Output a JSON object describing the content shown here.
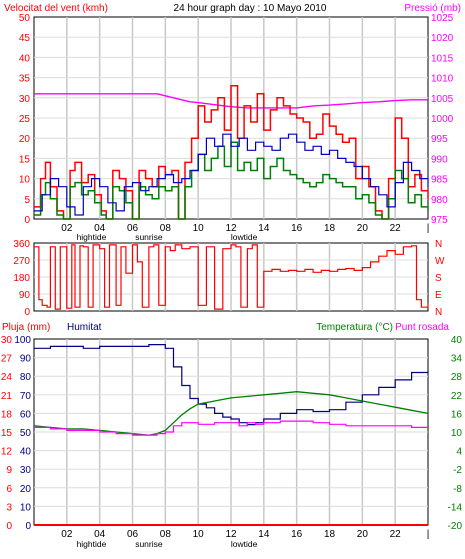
{
  "chart_data": [
    {
      "type": "line",
      "title": "24 hour graph day : 10 Mayo 2010",
      "left_axis_label": "Velocitat del vent (kmh)",
      "right_axis_label": "Pressió (mb)",
      "x_ticks": [
        "02",
        "04",
        "06",
        "08",
        "10",
        "12",
        "14",
        "16",
        "18",
        "20",
        "22",
        "|"
      ],
      "x_annotations": [
        {
          "text": "hightide",
          "x": 3.5
        },
        {
          "text": "sunrise",
          "x": 7.0
        },
        {
          "text": "lowtide",
          "x": 12.8
        }
      ],
      "left_ylim": [
        0,
        50
      ],
      "left_ticks": [
        0,
        5,
        10,
        15,
        20,
        25,
        30,
        35,
        40,
        45,
        50
      ],
      "right_ylim": [
        975,
        1025
      ],
      "right_ticks": [
        975,
        980,
        985,
        990,
        995,
        1000,
        1005,
        1010,
        1015,
        1020,
        1025
      ],
      "colors": {
        "gust": "#ff0000",
        "average": "#008000",
        "direction": "#0000c0",
        "pressure": "#ff00ff"
      },
      "series": [
        {
          "axis": "right",
          "key": "pressure",
          "x": [
            0,
            1,
            2,
            3,
            4,
            5,
            6,
            7,
            7.5,
            8,
            8.5,
            9,
            9.5,
            10,
            11,
            12,
            13,
            14,
            15,
            16,
            17,
            18,
            19,
            20,
            21,
            22,
            23,
            24
          ],
          "y": [
            1006,
            1006,
            1006,
            1006,
            1006,
            1006,
            1006,
            1006,
            1006,
            1005.5,
            1005,
            1004.5,
            1004,
            1003.8,
            1003.3,
            1002.8,
            1002.5,
            1002.5,
            1002.5,
            1002.5,
            1003,
            1003.2,
            1003.5,
            1003.8,
            1004,
            1004.3,
            1004.5,
            1004.5
          ]
        },
        {
          "axis": "left",
          "key": "gust",
          "x": [
            0,
            0.4,
            0.7,
            1.0,
            1.4,
            1.8,
            2.2,
            2.5,
            2.9,
            3.3,
            3.7,
            4.1,
            4.4,
            4.8,
            5.2,
            5.6,
            6.0,
            6.4,
            6.8,
            7.2,
            7.6,
            8.0,
            8.4,
            8.8,
            9.2,
            9.6,
            10.0,
            10.4,
            10.8,
            11.2,
            11.6,
            12.0,
            12.4,
            12.8,
            13.2,
            13.6,
            14.0,
            14.4,
            14.8,
            15.2,
            15.6,
            16.0,
            16.4,
            16.8,
            17.2,
            17.6,
            18.0,
            18.4,
            18.8,
            19.2,
            19.6,
            20.0,
            20.4,
            20.8,
            21.2,
            21.6,
            22.0,
            22.4,
            22.8,
            23.2,
            23.6,
            24.0
          ],
          "y": [
            3,
            10,
            14,
            8,
            2,
            0,
            12,
            14,
            9,
            11,
            6,
            2,
            0,
            12,
            10,
            7,
            0,
            12,
            10,
            8,
            13,
            11,
            12,
            0,
            14,
            20,
            28,
            24,
            27,
            30,
            22,
            33,
            20,
            28,
            24,
            31,
            22,
            27,
            30,
            28,
            26,
            25,
            24,
            20,
            21,
            26,
            23,
            21,
            19,
            20,
            10,
            13,
            8,
            2,
            0,
            10,
            25,
            20,
            8,
            11,
            7,
            5
          ]
        },
        {
          "axis": "left",
          "key": "average",
          "x": [
            0,
            0.4,
            0.7,
            1.0,
            1.4,
            1.8,
            2.2,
            2.5,
            2.9,
            3.3,
            3.7,
            4.1,
            4.4,
            4.8,
            5.2,
            5.6,
            6.0,
            6.4,
            6.8,
            7.2,
            7.6,
            8.0,
            8.4,
            8.8,
            9.2,
            9.6,
            10.0,
            10.4,
            10.8,
            11.2,
            11.6,
            12.0,
            12.4,
            12.8,
            13.2,
            13.6,
            14.0,
            14.4,
            14.8,
            15.2,
            15.6,
            16.0,
            16.4,
            16.8,
            17.2,
            17.6,
            18.0,
            18.4,
            18.8,
            19.2,
            19.6,
            20.0,
            20.4,
            20.8,
            21.2,
            21.6,
            22.0,
            22.4,
            22.8,
            23.2,
            23.6,
            24.0
          ],
          "y": [
            1,
            6,
            9,
            5,
            1,
            0,
            8,
            9,
            6,
            7,
            4,
            1,
            0,
            8,
            7,
            4,
            0,
            8,
            6,
            5,
            8,
            7,
            8,
            0,
            8,
            12,
            16,
            12,
            15,
            18,
            13,
            19,
            12,
            14,
            12,
            15,
            10,
            13,
            15,
            12,
            11,
            10,
            9,
            8,
            9,
            11,
            10,
            9,
            8,
            8,
            5,
            6,
            4,
            1,
            0,
            5,
            12,
            10,
            4,
            6,
            3,
            2
          ]
        },
        {
          "axis": "left",
          "key": "direction",
          "x": [
            0,
            0.5,
            1.0,
            1.5,
            2.0,
            2.5,
            3.0,
            3.5,
            4.0,
            4.5,
            5.0,
            5.5,
            6.0,
            6.5,
            7.0,
            7.5,
            8.0,
            8.5,
            9.0,
            9.5,
            10.0,
            10.5,
            11.0,
            11.5,
            12.0,
            12.5,
            13.0,
            13.5,
            14.0,
            14.5,
            15.0,
            15.5,
            16.0,
            16.5,
            17.0,
            17.5,
            18.0,
            18.5,
            19.0,
            19.5,
            20.0,
            20.5,
            21.0,
            21.5,
            22.0,
            22.5,
            23.0,
            23.5,
            24.0
          ],
          "y": [
            2,
            6,
            10,
            8,
            3,
            1,
            8,
            10,
            8,
            4,
            2,
            8,
            9,
            7,
            8,
            10,
            11,
            9,
            10,
            12,
            16,
            20,
            18,
            21,
            18,
            20,
            17,
            19,
            18,
            17,
            20,
            21,
            19,
            17,
            18,
            16,
            17,
            15,
            14,
            13,
            10,
            8,
            6,
            3,
            9,
            14,
            12,
            10,
            8
          ]
        }
      ]
    },
    {
      "type": "line",
      "title": "",
      "right_direction_labels": [
        "N",
        "W",
        "S",
        "E",
        "N"
      ],
      "ylim": [
        0,
        360
      ],
      "left_ticks": [
        0,
        90,
        180,
        270,
        360
      ],
      "series": [
        {
          "key": "wind_direction",
          "x": [
            0,
            0.3,
            0.5,
            0.8,
            1.0,
            1.3,
            1.6,
            2.0,
            2.3,
            2.5,
            2.8,
            3.0,
            3.3,
            3.6,
            4.0,
            4.3,
            4.6,
            5.0,
            5.3,
            5.6,
            6.0,
            6.3,
            6.6,
            7.0,
            7.3,
            7.6,
            8.0,
            8.3,
            8.6,
            9.0,
            9.5,
            10.0,
            10.5,
            11.0,
            11.5,
            12.0,
            12.3,
            12.6,
            13.0,
            13.3,
            13.6,
            14.0,
            14.5,
            15.0,
            15.5,
            16.0,
            16.5,
            17.0,
            17.5,
            18.0,
            18.5,
            19.0,
            19.5,
            20.0,
            20.5,
            21.0,
            21.5,
            22.0,
            22.5,
            23.0,
            23.3,
            23.6,
            24.0
          ],
          "y": [
            340,
            60,
            30,
            20,
            340,
            10,
            340,
            15,
            350,
            20,
            345,
            340,
            20,
            350,
            330,
            20,
            350,
            30,
            340,
            200,
            350,
            260,
            20,
            340,
            350,
            30,
            340,
            320,
            350,
            330,
            340,
            30,
            340,
            10,
            330,
            350,
            340,
            20,
            330,
            350,
            20,
            210,
            220,
            210,
            215,
            210,
            220,
            205,
            215,
            210,
            220,
            225,
            215,
            230,
            260,
            290,
            320,
            300,
            340,
            345,
            60,
            20,
            40
          ]
        }
      ]
    },
    {
      "type": "line",
      "title": "",
      "rain_axis_label": "Pluja (mm)",
      "humidity_axis_label": "Humitat",
      "temperature_label": "Temperatura (°C)",
      "dewpoint_label": "Punt rosada",
      "rain_ticks": [
        0,
        3,
        6,
        9,
        12,
        15,
        18,
        21,
        24,
        27,
        30
      ],
      "humidity_ticks": [
        0,
        10,
        20,
        30,
        40,
        50,
        60,
        70,
        80,
        90,
        100
      ],
      "temperature_ticks": [
        -20,
        -14,
        -8,
        -2,
        4,
        10,
        16,
        22,
        28,
        34,
        40
      ],
      "colors": {
        "rain": "#ff0000",
        "humidity": "#000080",
        "temperature": "#008000",
        "dewpoint": "#ff00ff"
      },
      "series": [
        {
          "key": "humidity",
          "axis": "humidity",
          "x": [
            0,
            1,
            2,
            3,
            4,
            5,
            6,
            7,
            7.5,
            8.0,
            8.5,
            9.0,
            9.5,
            10.0,
            10.5,
            11.0,
            11.5,
            12.0,
            12.5,
            13.0,
            13.5,
            14.0,
            15.0,
            16.0,
            17.0,
            18.0,
            19.0,
            20.0,
            21.0,
            22.0,
            23.0,
            24.0
          ],
          "y": [
            95,
            96,
            96,
            95,
            96,
            96,
            96,
            97,
            97,
            95,
            85,
            75,
            68,
            65,
            63,
            60,
            58,
            57,
            55,
            54,
            55,
            57,
            60,
            62,
            61,
            62,
            66,
            70,
            74,
            78,
            82,
            83
          ]
        },
        {
          "key": "temperature",
          "axis": "temperature",
          "x": [
            0,
            1,
            2,
            3,
            4,
            5,
            6,
            7,
            7.5,
            8.0,
            8.5,
            9.0,
            9.5,
            10.0,
            11.0,
            12.0,
            13.0,
            14.0,
            15.0,
            16.0,
            17.0,
            18.0,
            19.0,
            20.0,
            21.0,
            22.0,
            23.0,
            24.0
          ],
          "y": [
            12,
            11.5,
            11,
            11,
            10.5,
            10,
            9.5,
            9,
            9.5,
            10.5,
            13,
            15.5,
            17.5,
            19,
            20,
            21,
            21.5,
            22,
            22.5,
            23,
            22.5,
            22,
            21,
            20,
            19,
            18,
            17,
            16
          ]
        },
        {
          "key": "dewpoint",
          "axis": "temperature",
          "x": [
            0,
            1,
            2,
            3,
            4,
            5,
            6,
            7,
            7.5,
            8.0,
            8.5,
            9.0,
            9.5,
            10.0,
            11.0,
            12.0,
            12.5,
            13.0,
            13.5,
            14.0,
            15.0,
            16.0,
            17.0,
            18.0,
            19.0,
            20.0,
            21.0,
            22.0,
            23.0,
            24.0
          ],
          "y": [
            11.5,
            11,
            10.5,
            10.5,
            10,
            9.5,
            9,
            9,
            9.5,
            10,
            12,
            13,
            13,
            12.5,
            13,
            13,
            12,
            13,
            12.5,
            13,
            13.5,
            13.5,
            13,
            12.5,
            12,
            12,
            12,
            12,
            11.5,
            11.5
          ]
        },
        {
          "key": "rain",
          "axis": "rain",
          "x": [
            0,
            24
          ],
          "y": [
            0,
            0
          ]
        }
      ]
    }
  ]
}
